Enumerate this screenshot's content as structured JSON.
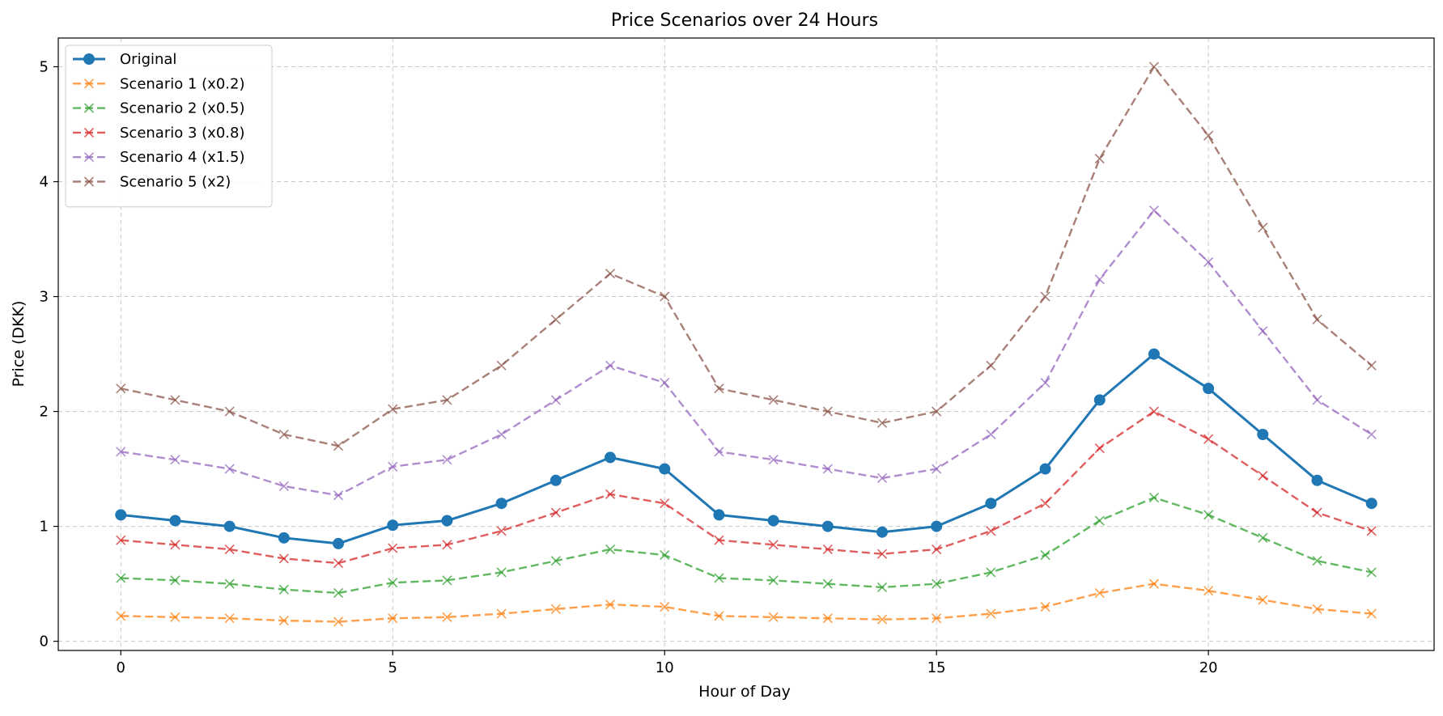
{
  "chart_data": {
    "type": "line",
    "title": "Price Scenarios over 24 Hours",
    "xlabel": "Hour of Day",
    "ylabel": "Price (DKK)",
    "xlim": [
      -1.15,
      24.15
    ],
    "ylim": [
      -0.08,
      5.25
    ],
    "xticks": [
      0,
      5,
      10,
      15,
      20
    ],
    "yticks": [
      0,
      1,
      2,
      3,
      4,
      5
    ],
    "grid": true,
    "legend_position": "top-left",
    "x": [
      0,
      1,
      2,
      3,
      4,
      5,
      6,
      7,
      8,
      9,
      10,
      11,
      12,
      13,
      14,
      15,
      16,
      17,
      18,
      19,
      20,
      21,
      22,
      23
    ],
    "series": [
      {
        "name": "Original",
        "color": "#1f77b4",
        "style": "solid",
        "marker": "circle",
        "values": [
          1.1,
          1.05,
          1.0,
          0.9,
          0.85,
          1.01,
          1.05,
          1.2,
          1.4,
          1.6,
          1.5,
          1.1,
          1.05,
          1.0,
          0.95,
          1.0,
          1.2,
          1.5,
          2.1,
          2.5,
          2.2,
          1.8,
          1.4,
          1.2
        ]
      },
      {
        "name": "Scenario 1 (x0.2)",
        "color": "#ff7f0e",
        "style": "dashed",
        "marker": "x",
        "values": [
          0.22,
          0.21,
          0.2,
          0.18,
          0.17,
          0.2,
          0.21,
          0.24,
          0.28,
          0.32,
          0.3,
          0.22,
          0.21,
          0.2,
          0.19,
          0.2,
          0.24,
          0.3,
          0.42,
          0.5,
          0.44,
          0.36,
          0.28,
          0.24
        ]
      },
      {
        "name": "Scenario 2 (x0.5)",
        "color": "#2ca02c",
        "style": "dashed",
        "marker": "x",
        "values": [
          0.55,
          0.53,
          0.5,
          0.45,
          0.42,
          0.51,
          0.53,
          0.6,
          0.7,
          0.8,
          0.75,
          0.55,
          0.53,
          0.5,
          0.47,
          0.5,
          0.6,
          0.75,
          1.05,
          1.25,
          1.1,
          0.9,
          0.7,
          0.6
        ]
      },
      {
        "name": "Scenario 3 (x0.8)",
        "color": "#d62728",
        "style": "dashed",
        "marker": "x",
        "values": [
          0.88,
          0.84,
          0.8,
          0.72,
          0.68,
          0.81,
          0.84,
          0.96,
          1.12,
          1.28,
          1.2,
          0.88,
          0.84,
          0.8,
          0.76,
          0.8,
          0.96,
          1.2,
          1.68,
          2.0,
          1.76,
          1.44,
          1.12,
          0.96
        ]
      },
      {
        "name": "Scenario 4 (x1.5)",
        "color": "#9467bd",
        "style": "dashed",
        "marker": "x",
        "values": [
          1.65,
          1.58,
          1.5,
          1.35,
          1.27,
          1.52,
          1.58,
          1.8,
          2.1,
          2.4,
          2.25,
          1.65,
          1.58,
          1.5,
          1.42,
          1.5,
          1.8,
          2.25,
          3.15,
          3.75,
          3.3,
          2.7,
          2.1,
          1.8
        ]
      },
      {
        "name": "Scenario 5 (x2)",
        "color": "#8c564b",
        "style": "dashed",
        "marker": "x",
        "values": [
          2.2,
          2.1,
          2.0,
          1.8,
          1.7,
          2.02,
          2.1,
          2.4,
          2.8,
          3.2,
          3.0,
          2.2,
          2.1,
          2.0,
          1.9,
          2.0,
          2.4,
          3.0,
          4.2,
          5.0,
          4.4,
          3.6,
          2.8,
          2.4
        ]
      }
    ]
  }
}
